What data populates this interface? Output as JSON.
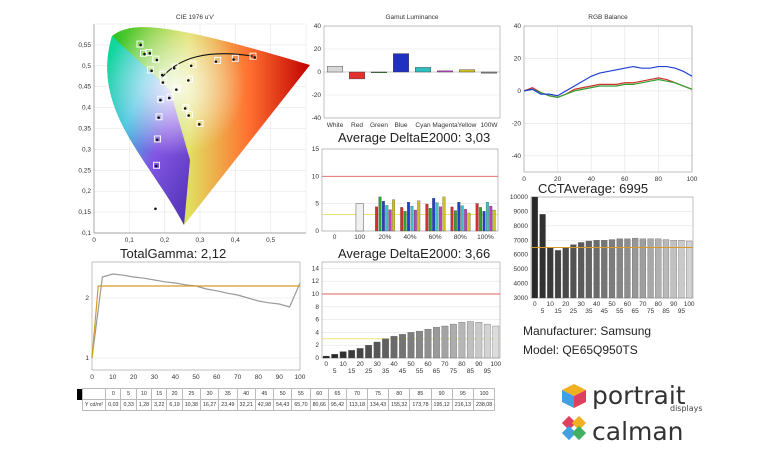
{
  "cie": {
    "title": "CIE 1976 u'v'",
    "x_ticks": [
      "0",
      "0,1",
      "0,2",
      "0,3",
      "0,4",
      "0,5"
    ],
    "y_ticks": [
      "0,55",
      "0,5",
      "0,45",
      "0,4",
      "0,35",
      "0,3",
      "0,25",
      "0,2",
      "0,15",
      "0,1"
    ]
  },
  "total_gamma_title": "TotalGamma: 2,12",
  "delta1_title": "Average DeltaE2000: 3,03",
  "delta2_title": "Average DeltaE2000: 3,66",
  "cct_title": "CCTAverage: 6995",
  "manufacturer": "Manufacturer: Samsung",
  "model": "Model: QE65Q950TS",
  "logos": {
    "portrait": "portrait",
    "portrait_sub": "displays",
    "calman": "calman"
  },
  "luminance_table": {
    "unit_label": "Y cd/m²",
    "levels": [
      "0",
      "5",
      "10",
      "15",
      "20",
      "25",
      "30",
      "35",
      "40",
      "45",
      "50",
      "55",
      "60",
      "65",
      "70",
      "75",
      "80",
      "85",
      "90",
      "95",
      "100"
    ],
    "values": [
      "0,03",
      "0,33",
      "1,28",
      "3,22",
      "6,19",
      "10,38",
      "16,27",
      "23,49",
      "32,21",
      "42,98",
      "54,43",
      "65,70",
      "80,66",
      "95,42",
      "113,18",
      "134,43",
      "155,32",
      "173,78",
      "195,12",
      "216,13",
      "238,08"
    ]
  },
  "chart_data": [
    {
      "type": "scatter",
      "name": "cie",
      "title": "CIE 1976 u'v'",
      "xlim": [
        0,
        0.6
      ],
      "ylim": [
        0.1,
        0.6
      ],
      "targets": [
        [
          0.45,
          0.523
        ],
        [
          0.4,
          0.518
        ],
        [
          0.35,
          0.513
        ],
        [
          0.28,
          0.504
        ],
        [
          0.23,
          0.497
        ],
        [
          0.195,
          0.48
        ],
        [
          0.27,
          0.468
        ],
        [
          0.235,
          0.445
        ],
        [
          0.215,
          0.425
        ],
        [
          0.26,
          0.4
        ],
        [
          0.27,
          0.383
        ],
        [
          0.3,
          0.362
        ],
        [
          0.197,
          0.463
        ],
        [
          0.189,
          0.42
        ],
        [
          0.184,
          0.378
        ],
        [
          0.18,
          0.325
        ],
        [
          0.177,
          0.262
        ],
        [
          0.175,
          0.16
        ],
        [
          0.13,
          0.552
        ],
        [
          0.155,
          0.532
        ],
        [
          0.175,
          0.516
        ],
        [
          0.14,
          0.53
        ],
        [
          0.16,
          0.49
        ]
      ],
      "measured": [
        [
          0.455,
          0.52
        ],
        [
          0.395,
          0.515
        ],
        [
          0.345,
          0.51
        ],
        [
          0.275,
          0.5
        ],
        [
          0.227,
          0.494
        ],
        [
          0.193,
          0.478
        ],
        [
          0.267,
          0.465
        ],
        [
          0.233,
          0.443
        ],
        [
          0.213,
          0.423
        ],
        [
          0.258,
          0.398
        ],
        [
          0.268,
          0.381
        ],
        [
          0.298,
          0.36
        ],
        [
          0.195,
          0.46
        ],
        [
          0.188,
          0.418
        ],
        [
          0.183,
          0.376
        ],
        [
          0.179,
          0.323
        ],
        [
          0.176,
          0.26
        ],
        [
          0.174,
          0.158
        ],
        [
          0.132,
          0.55
        ],
        [
          0.158,
          0.53
        ],
        [
          0.178,
          0.514
        ],
        [
          0.143,
          0.528
        ],
        [
          0.163,
          0.488
        ]
      ]
    },
    {
      "type": "bar",
      "name": "gamut_luminance",
      "title": "Gamut Luminance",
      "categories": [
        "White",
        "Red",
        "Green",
        "Blue",
        "Cyan",
        "Magenta",
        "Yellow",
        "100W"
      ],
      "values": [
        5,
        -6,
        0,
        16,
        4,
        1,
        2,
        -1
      ],
      "ylim": [
        -40,
        40
      ],
      "colors": [
        "#d8d8d8",
        "#e03030",
        "#30a030",
        "#2030c0",
        "#30c0c0",
        "#d040d0",
        "#d0c020",
        "#888888"
      ]
    },
    {
      "type": "line",
      "name": "rgb_balance",
      "title": "RGB Balance",
      "xlim": [
        0,
        100
      ],
      "ylim": [
        -50,
        40
      ],
      "x": [
        0,
        5,
        10,
        15,
        20,
        25,
        30,
        35,
        40,
        45,
        50,
        55,
        60,
        65,
        70,
        75,
        80,
        85,
        90,
        95,
        100
      ],
      "series": [
        {
          "color": "#d03030",
          "values": [
            0,
            2,
            -1,
            -3,
            -4,
            -2,
            1,
            2,
            3,
            4,
            4,
            4,
            5,
            5,
            6,
            7,
            8,
            7,
            5,
            3,
            1
          ]
        },
        {
          "color": "#30a030",
          "values": [
            0,
            1,
            -1,
            -3,
            -4,
            -2,
            0,
            1,
            2,
            3,
            3,
            3,
            4,
            4,
            5,
            6,
            7,
            6,
            5,
            3,
            1
          ]
        },
        {
          "color": "#2040d0",
          "values": [
            0,
            1,
            -2,
            -2,
            -3,
            0,
            3,
            6,
            9,
            11,
            12,
            13,
            14,
            15,
            14,
            14,
            15,
            15,
            14,
            12,
            9
          ]
        }
      ]
    },
    {
      "type": "bar",
      "name": "deltae_colors",
      "title": "Average DeltaE2000: 3,03",
      "ylim": [
        0,
        15
      ],
      "yticks": [
        0,
        5,
        10,
        15
      ],
      "categories": [
        "0",
        "100",
        "20%",
        "40%",
        "60%",
        "80%",
        "100%"
      ],
      "values": [
        0,
        5,
        6.5,
        6,
        6.5,
        5.5,
        6
      ]
    },
    {
      "type": "bar",
      "name": "deltae_grayscale",
      "title": "Average DeltaE2000: 3,66",
      "xlim": [
        0,
        100
      ],
      "ylim": [
        0,
        15
      ],
      "yticks": [
        0,
        2,
        4,
        6,
        8,
        10,
        12,
        14
      ],
      "categories": [
        "0",
        "5",
        "10",
        "15",
        "20",
        "25",
        "30",
        "35",
        "40",
        "45",
        "50",
        "55",
        "60",
        "65",
        "70",
        "75",
        "80",
        "85",
        "90",
        "95",
        "100"
      ],
      "values": [
        0.3,
        0.6,
        1.0,
        1.2,
        1.5,
        2.0,
        2.5,
        3.0,
        3.4,
        3.7,
        4.0,
        4.2,
        4.5,
        4.8,
        5.0,
        5.3,
        5.6,
        5.7,
        5.6,
        5.3,
        5.0
      ],
      "thresholds": [
        3,
        10
      ]
    },
    {
      "type": "line",
      "name": "total_gamma",
      "title": "TotalGamma: 2,12",
      "xlim": [
        0,
        100
      ],
      "ylim": [
        0.8,
        2.6
      ],
      "yticks": [
        1,
        2
      ],
      "xticks": [
        0,
        10,
        20,
        30,
        40,
        50,
        60,
        70,
        80,
        90,
        100
      ],
      "series": [
        {
          "color": "#9a9a9a",
          "x": [
            0,
            5,
            10,
            15,
            20,
            25,
            30,
            35,
            40,
            45,
            50,
            55,
            60,
            65,
            70,
            75,
            80,
            85,
            90,
            95,
            100
          ],
          "values": [
            1.0,
            2.35,
            2.4,
            2.38,
            2.35,
            2.33,
            2.3,
            2.27,
            2.25,
            2.22,
            2.2,
            2.15,
            2.12,
            2.08,
            2.05,
            2.0,
            1.95,
            1.92,
            1.9,
            1.85,
            2.25
          ]
        },
        {
          "color": "#d79a2a",
          "x": [
            0,
            3,
            100
          ],
          "values": [
            1.0,
            2.2,
            2.2
          ]
        }
      ]
    },
    {
      "type": "bar",
      "name": "cct",
      "title": "CCTAverage: 6995",
      "ylim": [
        3000,
        10000
      ],
      "yticks": [
        3000,
        4000,
        5000,
        6000,
        7000,
        8000,
        9000,
        10000
      ],
      "categories": [
        "0",
        "5",
        "10",
        "15",
        "20",
        "25",
        "30",
        "35",
        "40",
        "45",
        "50",
        "55",
        "60",
        "65",
        "70",
        "75",
        "80",
        "85",
        "90",
        "95",
        "100"
      ],
      "values": [
        10000,
        8800,
        6500,
        6300,
        6500,
        6700,
        6850,
        6950,
        7000,
        7000,
        7050,
        7100,
        7100,
        7150,
        7100,
        7100,
        7100,
        7050,
        7000,
        7000,
        6950
      ],
      "reference": 6500
    }
  ]
}
